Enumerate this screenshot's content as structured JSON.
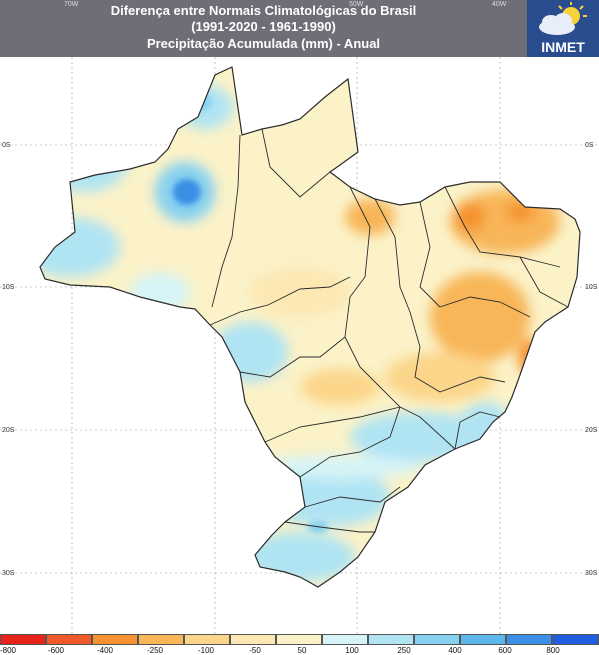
{
  "header": {
    "title_line1": "Diferença entre Normais Climatológicas do Brasil",
    "title_line2": "(1991-2020 - 1961-1990)",
    "title_line3": "Precipitação Acumulada (mm) - Anual",
    "logo": "INMET",
    "logo_icon": "sun-cloud-icon"
  },
  "map": {
    "lon_labels": [
      "70W",
      "50W",
      "40W"
    ],
    "lat_labels": [
      "0S",
      "10S",
      "20S",
      "30S"
    ],
    "lat_labels_right": [
      "0S",
      "10S",
      "20S",
      "30S"
    ],
    "colors": {
      "ocean": "#ffffff",
      "land_zero": "#fbf2c8",
      "grid": "#9a9a9a",
      "border": "#2b2b2b"
    }
  },
  "legend": {
    "unit": "mm",
    "colors": [
      "#e8231a",
      "#f05a2a",
      "#f6922f",
      "#f8b658",
      "#fbd68a",
      "#fde8b4",
      "#fbf2c8",
      "#d6f4f7",
      "#b0e4f3",
      "#86d1f0",
      "#5cb6ec",
      "#3b8fe5",
      "#1f5ee0"
    ],
    "ticks": [
      "-800",
      "-600",
      "-400",
      "-250",
      "-100",
      "-50",
      "50",
      "100",
      "250",
      "400",
      "600",
      "800"
    ]
  }
}
